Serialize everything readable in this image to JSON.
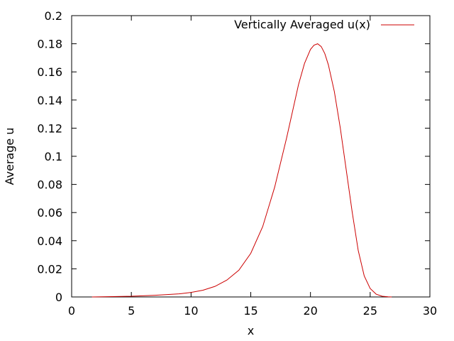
{
  "chart_data": {
    "type": "line",
    "title": "",
    "xlabel": "x",
    "ylabel": "Average u",
    "xlim": [
      0,
      30
    ],
    "ylim": [
      0,
      0.2
    ],
    "x_ticks": [
      0,
      5,
      10,
      15,
      20,
      25,
      30
    ],
    "y_ticks": [
      0,
      0.02,
      0.04,
      0.06,
      0.08,
      0.1,
      0.12,
      0.14,
      0.16,
      0.18,
      0.2
    ],
    "x_tick_labels": [
      "0",
      "5",
      "10",
      "15",
      "20",
      "25",
      "30"
    ],
    "y_tick_labels": [
      "0",
      "0.02",
      "0.04",
      "0.06",
      "0.08",
      "0.1",
      "0.12",
      "0.14",
      "0.16",
      "0.18",
      "0.2"
    ],
    "grid": false,
    "legend_position": "top-right",
    "series": [
      {
        "name": "Vertically Averaged u(x)",
        "color": "#cc0000",
        "x": [
          1.7,
          3,
          5,
          7,
          9,
          10,
          11,
          12,
          13,
          14,
          15,
          16,
          17,
          18,
          18.5,
          19,
          19.5,
          20,
          20.3,
          20.6,
          20.9,
          21.2,
          21.5,
          22,
          22.5,
          23,
          23.5,
          24,
          24.5,
          25,
          25.5,
          26,
          26.5,
          26.8
        ],
        "y": [
          0.0,
          0.0002,
          0.0005,
          0.0012,
          0.0022,
          0.0032,
          0.0048,
          0.0075,
          0.012,
          0.019,
          0.031,
          0.05,
          0.078,
          0.113,
          0.132,
          0.151,
          0.166,
          0.176,
          0.179,
          0.18,
          0.178,
          0.173,
          0.165,
          0.146,
          0.12,
          0.09,
          0.06,
          0.033,
          0.015,
          0.006,
          0.002,
          0.0005,
          0.0001,
          0.0
        ]
      }
    ]
  }
}
